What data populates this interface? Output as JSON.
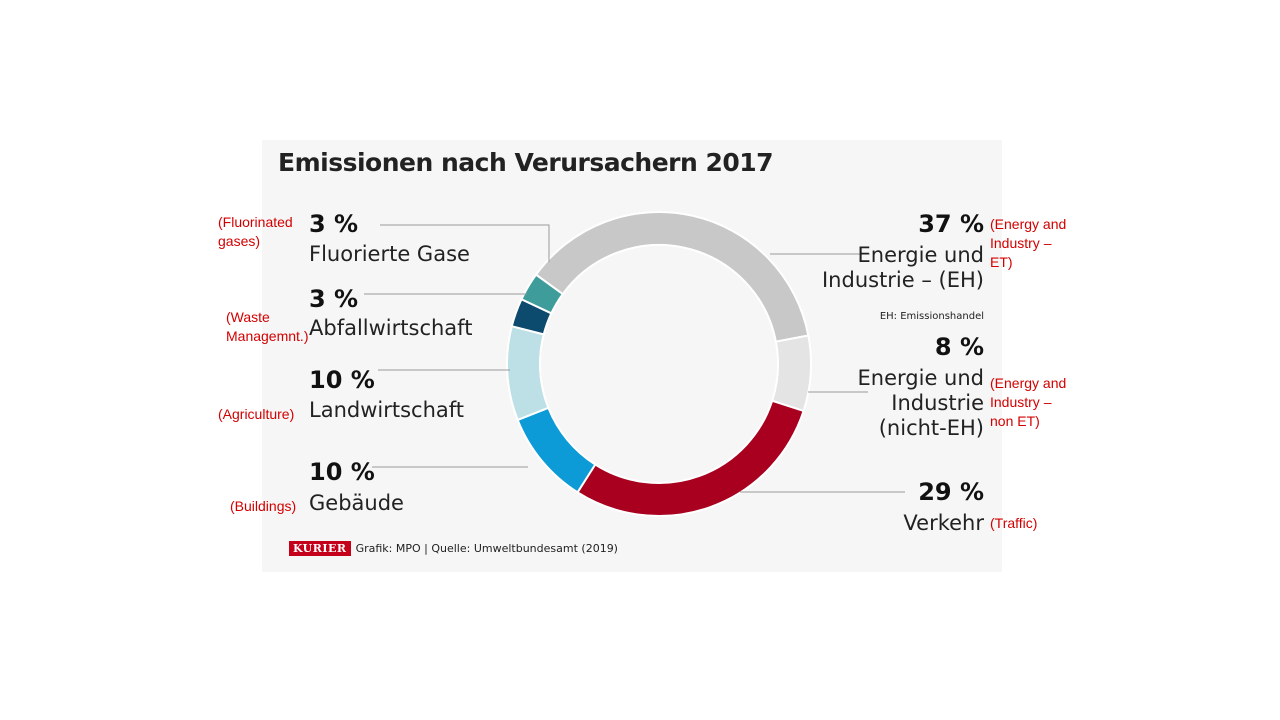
{
  "chart_data": {
    "type": "pie",
    "subtype": "donut",
    "title": "Emissionen nach Verursachern 2017",
    "series": [
      {
        "name": "Energie und Industrie – (EH)",
        "value": 37,
        "value_label": "37 %",
        "label_de": [
          "Energie und",
          "Industrie – (EH)"
        ],
        "label_en": [
          "(Energy and",
          "Industry –",
          "ET)"
        ],
        "color": "#c8c8c8"
      },
      {
        "name": "Energie und Industrie (nicht-EH)",
        "value": 8,
        "value_label": "8 %",
        "label_de": [
          "Energie und",
          "Industrie",
          "(nicht-EH)"
        ],
        "label_en": [
          "(Energy and",
          "Industry –",
          "non ET)"
        ],
        "color": "#e4e4e4"
      },
      {
        "name": "Verkehr",
        "value": 29,
        "value_label": "29 %",
        "label_de": [
          "Verkehr"
        ],
        "label_en": [
          "(Traffic)"
        ],
        "color": "#a8001e"
      },
      {
        "name": "Gebäude",
        "value": 10,
        "value_label": "10 %",
        "label_de": [
          "Gebäude"
        ],
        "label_en": [
          "(Buildings)"
        ],
        "color": "#0c9bd7"
      },
      {
        "name": "Landwirtschaft",
        "value": 10,
        "value_label": "10 %",
        "label_de": [
          "Landwirtschaft"
        ],
        "label_en": [
          "(Agriculture)"
        ],
        "color": "#bde0e6"
      },
      {
        "name": "Abfallwirtschaft",
        "value": 3,
        "value_label": "3 %",
        "label_de": [
          "Abfallwirtschaft"
        ],
        "label_en": [
          "(Waste",
          "Managemnt.)"
        ],
        "color": "#0c4a6e"
      },
      {
        "name": "Fluorierte Gase",
        "value": 3,
        "value_label": "3 %",
        "label_de": [
          "Fluorierte Gase"
        ],
        "label_en": [
          "(Fluorinated",
          "gases)"
        ],
        "color": "#3e9c9a"
      }
    ],
    "note": "EH: Emissionshandel",
    "legend": "labels beside the ring, connected by leader lines"
  },
  "footer": {
    "brand": "KURIER",
    "text": "Grafik: MPO | Quelle: Umweltbundesamt (2019)"
  },
  "colors": {
    "line": "#9a9a9a",
    "translation": "#d40000",
    "brand": "#c4001a"
  }
}
